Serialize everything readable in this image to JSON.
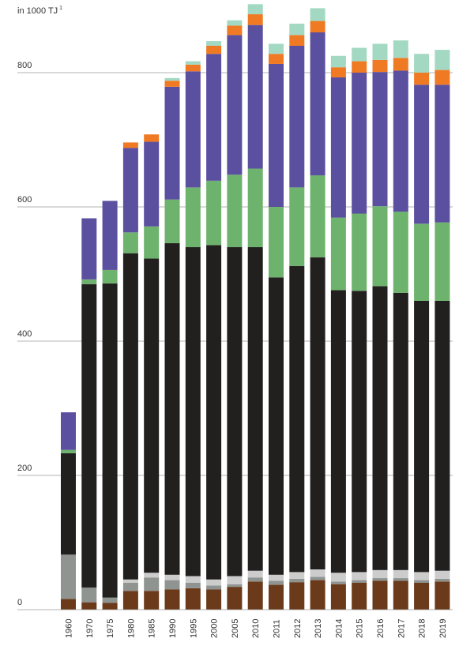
{
  "chart_data": {
    "type": "bar",
    "stacked": true,
    "unit_label": "in 1000 TJ",
    "unit_footnote": "1",
    "ylim": [
      0,
      900
    ],
    "yticks": [
      0,
      200,
      400,
      600,
      800
    ],
    "ytick_labels": [
      "0",
      "200",
      "400",
      "600",
      "800"
    ],
    "grid": true,
    "legend": "none",
    "categories": [
      "1960",
      "1970",
      "1975",
      "1980",
      "1985",
      "1990",
      "1995",
      "2000",
      "2005",
      "2010",
      "2011",
      "2012",
      "2013",
      "2014",
      "2015",
      "2016",
      "2017",
      "2018",
      "2019"
    ],
    "series": [
      {
        "color": "#6b3a1a",
        "values": [
          16,
          11,
          10,
          28,
          28,
          30,
          32,
          30,
          34,
          42,
          37,
          41,
          44,
          38,
          40,
          43,
          43,
          40,
          42
        ]
      },
      {
        "color": "#8f9491",
        "values": [
          66,
          22,
          8,
          12,
          20,
          14,
          8,
          6,
          4,
          6,
          6,
          5,
          5,
          4,
          4,
          4,
          4,
          4,
          4
        ]
      },
      {
        "color": "#cccccc",
        "values": [
          0,
          0,
          0,
          5,
          7,
          8,
          10,
          9,
          12,
          10,
          9,
          10,
          11,
          13,
          12,
          12,
          12,
          12,
          12
        ]
      },
      {
        "color": "#221f1f",
        "values": [
          151,
          452,
          468,
          486,
          468,
          494,
          490,
          498,
          490,
          482,
          443,
          456,
          465,
          421,
          419,
          423,
          413,
          404,
          402
        ]
      },
      {
        "color": "#6db26d",
        "values": [
          5,
          7,
          20,
          31,
          48,
          65,
          89,
          96,
          108,
          117,
          105,
          117,
          122,
          108,
          115,
          119,
          121,
          115,
          117
        ]
      },
      {
        "color": "#5b4fa0",
        "values": [
          56,
          91,
          103,
          126,
          126,
          168,
          173,
          189,
          208,
          214,
          213,
          211,
          213,
          209,
          210,
          200,
          210,
          207,
          205
        ]
      },
      {
        "color": "#f07a23",
        "values": [
          0,
          0,
          0,
          8,
          11,
          9,
          10,
          12,
          14,
          16,
          15,
          16,
          17,
          15,
          17,
          18,
          19,
          18,
          22
        ]
      },
      {
        "color": "#a3d9c2",
        "values": [
          0,
          0,
          0,
          0,
          0,
          4,
          5,
          7,
          8,
          15,
          15,
          17,
          19,
          17,
          20,
          24,
          26,
          28,
          30
        ]
      }
    ]
  }
}
